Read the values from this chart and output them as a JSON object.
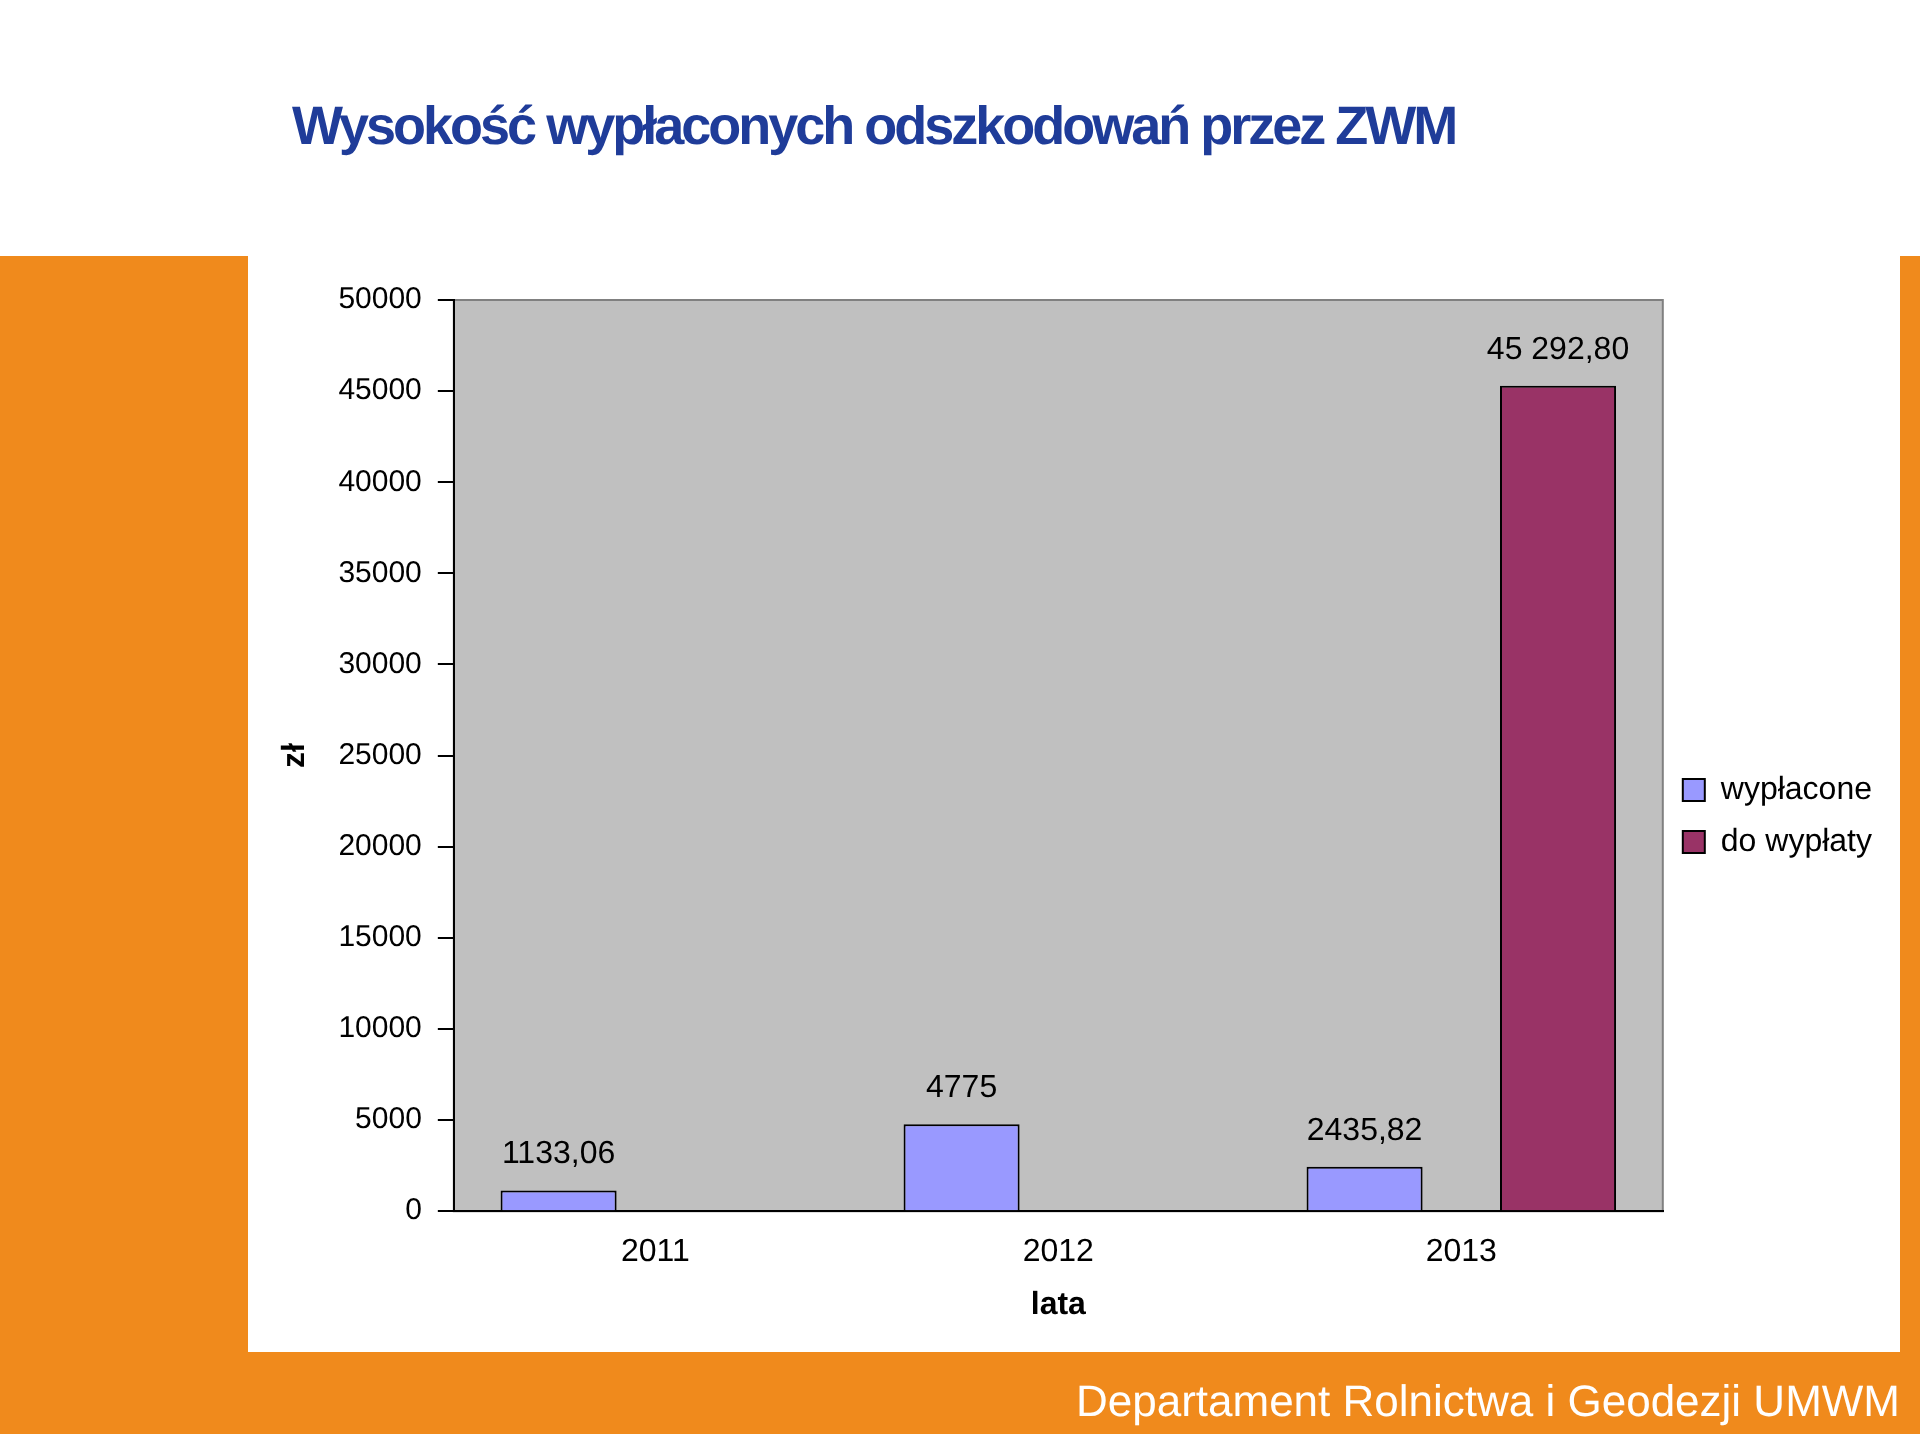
{
  "chart_data": {
    "type": "bar",
    "title": "Wysokość wypłaconych odszkodowań przez ZWM",
    "xlabel": "lata",
    "ylabel": "zł",
    "categories": [
      "2011",
      "2012",
      "2013"
    ],
    "series": [
      {
        "name": "wypłacone",
        "color": "#9999ff",
        "values": [
          1133.06,
          4775,
          2435.82
        ],
        "value_labels": [
          "1133,06",
          "4775",
          "2435,82"
        ]
      },
      {
        "name": "do wypłaty",
        "color": "#993366",
        "values": [
          null,
          null,
          45292.8
        ],
        "value_labels": [
          null,
          null,
          "45 292,80"
        ]
      }
    ],
    "ylim": [
      0,
      50000
    ],
    "yticks": [
      0,
      5000,
      10000,
      15000,
      20000,
      25000,
      30000,
      35000,
      40000,
      45000,
      50000
    ],
    "grid": false,
    "legend": "right",
    "annotations": [
      "Departament Rolnictwa i Geodezji UMWM"
    ]
  }
}
